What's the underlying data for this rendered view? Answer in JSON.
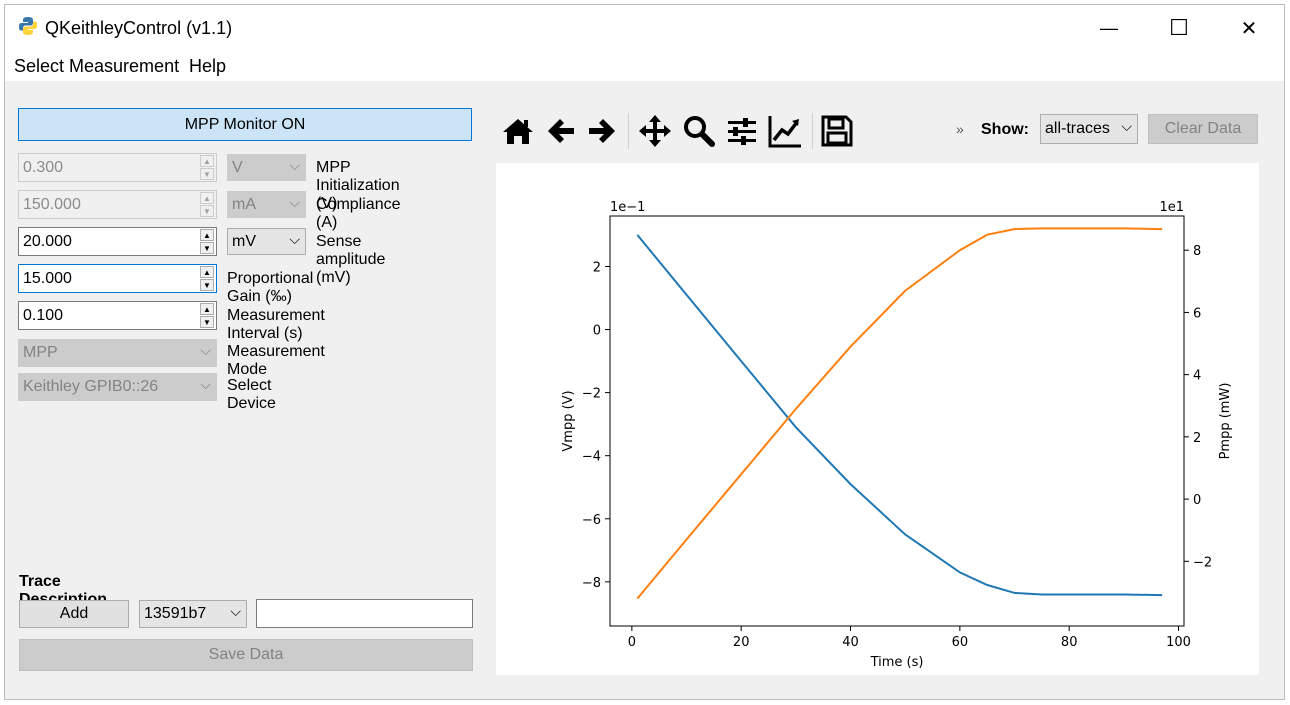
{
  "window": {
    "title": "QKeithleyControl (v1.1)",
    "controls": {
      "minimize": "—",
      "maximize": "☐",
      "close": "✕"
    }
  },
  "menu": {
    "items": [
      "Select Measurement",
      "Help"
    ]
  },
  "left_panel": {
    "mpp_button": "MPP Monitor ON",
    "rows": [
      {
        "value": "0.300",
        "unit": "V",
        "label": "MPP Initialization (V)",
        "enabled": false
      },
      {
        "value": "150.000",
        "unit": "mA",
        "label": "Compliance (A)",
        "enabled": false
      },
      {
        "value": "20.000",
        "unit": "mV",
        "label": "Sense amplitude (mV)",
        "enabled": true
      },
      {
        "value": "15.000",
        "label": "Proportional Gain (‰)",
        "enabled": true
      },
      {
        "value": "0.100",
        "label": "Measurement Interval (s)",
        "enabled": true
      }
    ],
    "mode_combo": {
      "value": "MPP",
      "label": "Measurement Mode"
    },
    "device_combo": {
      "value": "Keithley GPIB0::26",
      "label": "Select Device"
    },
    "trace": {
      "title": "Trace Description",
      "add_button": "Add",
      "trace_id": "13591b7",
      "description": "",
      "save_button": "Save Data"
    }
  },
  "toolbar": {
    "icons": [
      "home-icon",
      "back-icon",
      "forward-icon",
      "pan-icon",
      "zoom-icon",
      "configure-subplots-icon",
      "edit-axis-icon",
      "save-icon"
    ],
    "overflow": "»",
    "show_label": "Show:",
    "show_value": "all-traces",
    "clear_button": "Clear Data"
  },
  "chart_data": {
    "type": "line",
    "xlabel": "Time (s)",
    "ylabel_left": "Vmpp (V)",
    "ylabel_right": "Pmpp (mW)",
    "offset_left": "1e−1",
    "offset_right": "1e1",
    "xlim": [
      -4,
      101
    ],
    "ylim_left": [
      -9.4,
      3.6
    ],
    "ylim_right": [
      -4.08,
      9.1
    ],
    "xticks": [
      0,
      20,
      40,
      60,
      80,
      100
    ],
    "yticks_left": [
      2,
      0,
      -2,
      -4,
      -6,
      -8
    ],
    "yticks_right": [
      8,
      6,
      4,
      2,
      0,
      -2
    ],
    "series": [
      {
        "axis": "left",
        "color": "#1f77b4",
        "x": [
          1,
          10,
          20,
          30,
          40,
          50,
          60,
          65,
          70,
          75,
          80,
          90,
          97
        ],
        "y": [
          3.0,
          1.1,
          -1.0,
          -3.1,
          -4.9,
          -6.5,
          -7.7,
          -8.1,
          -8.35,
          -8.4,
          -8.4,
          -8.4,
          -8.42
        ]
      },
      {
        "axis": "right",
        "color": "#ff7f0e",
        "x": [
          1,
          10,
          20,
          30,
          40,
          50,
          60,
          65,
          70,
          75,
          80,
          90,
          97
        ],
        "y": [
          -3.2,
          -1.3,
          0.8,
          2.9,
          4.9,
          6.7,
          8.0,
          8.5,
          8.68,
          8.7,
          8.7,
          8.7,
          8.68
        ]
      }
    ]
  }
}
